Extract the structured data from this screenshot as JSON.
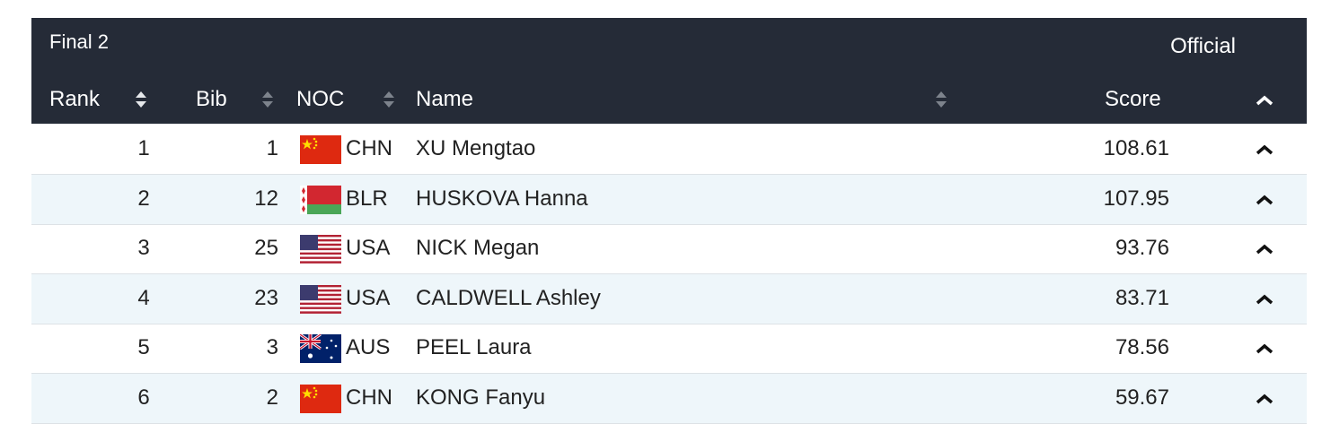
{
  "header": {
    "title": "Final 2",
    "status": "Official"
  },
  "table": {
    "columns": [
      "Rank",
      "Bib",
      "NOC",
      "Name",
      "Score"
    ],
    "rows": [
      [
        1,
        1,
        "CHN",
        "XU Mengtao",
        108.61
      ],
      [
        2,
        12,
        "BLR",
        "HUSKOVA Hanna",
        107.95
      ],
      [
        3,
        25,
        "USA",
        "NICK Megan",
        93.76
      ],
      [
        4,
        23,
        "USA",
        "CALDWELL Ashley",
        83.71
      ],
      [
        5,
        3,
        "AUS",
        "PEEL Laura",
        78.56
      ],
      [
        6,
        2,
        "CHN",
        "KONG Fanyu",
        59.67
      ]
    ]
  }
}
